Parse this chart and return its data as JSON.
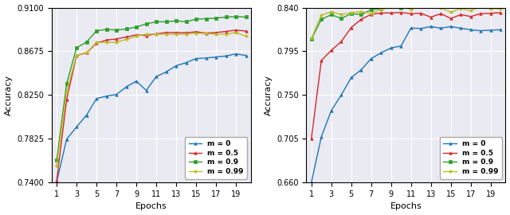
{
  "epochs": [
    1,
    2,
    3,
    4,
    5,
    6,
    7,
    8,
    9,
    10,
    11,
    12,
    13,
    14,
    15,
    16,
    17,
    18,
    19,
    20
  ],
  "left": {
    "m0": [
      0.7405,
      0.782,
      0.794,
      0.8055,
      0.8215,
      0.824,
      0.8255,
      0.833,
      0.8385,
      0.8295,
      0.843,
      0.8475,
      0.8535,
      0.8565,
      0.8605,
      0.861,
      0.862,
      0.863,
      0.865,
      0.8635
    ],
    "m05": [
      0.7415,
      0.8205,
      0.8635,
      0.866,
      0.8755,
      0.8785,
      0.8795,
      0.8815,
      0.8835,
      0.8828,
      0.8845,
      0.8858,
      0.8858,
      0.8855,
      0.8865,
      0.8852,
      0.8858,
      0.8868,
      0.8882,
      0.8872
    ],
    "m09": [
      0.7615,
      0.836,
      0.871,
      0.8765,
      0.8875,
      0.8888,
      0.8882,
      0.8892,
      0.8912,
      0.8942,
      0.8962,
      0.8962,
      0.8972,
      0.8962,
      0.8988,
      0.8992,
      0.8998,
      0.9008,
      0.9012,
      0.9008
    ],
    "m099": [
      0.7565,
      0.8285,
      0.8635,
      0.8662,
      0.8762,
      0.8762,
      0.8762,
      0.8792,
      0.8822,
      0.8842,
      0.8842,
      0.8842,
      0.8842,
      0.8842,
      0.8852,
      0.8848,
      0.8842,
      0.8842,
      0.8858,
      0.8822
    ],
    "ylim": [
      0.74,
      0.91
    ],
    "yticks": [
      0.74,
      0.7825,
      0.825,
      0.8675,
      0.91
    ]
  },
  "right": {
    "m0": [
      0.66,
      0.707,
      0.734,
      0.75,
      0.768,
      0.776,
      0.7875,
      0.7935,
      0.7985,
      0.8005,
      0.819,
      0.8185,
      0.8205,
      0.8188,
      0.8205,
      0.8188,
      0.8172,
      0.8162,
      0.8168,
      0.8172
    ],
    "m05": [
      0.705,
      0.7855,
      0.796,
      0.805,
      0.8195,
      0.828,
      0.833,
      0.8345,
      0.8345,
      0.835,
      0.8338,
      0.8342,
      0.8302,
      0.8338,
      0.8288,
      0.8328,
      0.8308,
      0.8338,
      0.8342,
      0.8348
    ],
    "m09": [
      0.8075,
      0.8278,
      0.8328,
      0.8288,
      0.8338,
      0.8328,
      0.8378,
      0.8392,
      0.8418,
      0.8398,
      0.8418,
      0.8412,
      0.8458,
      0.8442,
      0.8432,
      0.8452,
      0.8458,
      0.8468,
      0.8482,
      0.8478
    ],
    "m099": [
      0.8082,
      0.8322,
      0.8358,
      0.8328,
      0.8348,
      0.8358,
      0.8342,
      0.8382,
      0.8402,
      0.8408,
      0.8382,
      0.8412,
      0.8412,
      0.8398,
      0.8352,
      0.8392,
      0.8368,
      0.8412,
      0.8392,
      0.8388
    ],
    "ylim": [
      0.66,
      0.84
    ],
    "yticks": [
      0.66,
      0.705,
      0.75,
      0.795,
      0.84
    ]
  },
  "colors": {
    "m0": "#1f77b4",
    "m05": "#d62728",
    "m09": "#2ca02c",
    "m099": "#bcbd22"
  },
  "legend_labels": [
    "m = 0",
    "m = 0.5",
    "m = 0.9",
    "m = 0.99"
  ],
  "xlabel": "Epochs",
  "ylabel": "Accuracy",
  "xticks": [
    1,
    3,
    5,
    7,
    9,
    11,
    13,
    15,
    17,
    19
  ],
  "marker_styles": {
    "m0": "^",
    "m05": "^",
    "m09": "s",
    "m099": "P"
  },
  "marker_sizes": {
    "m0": 2.5,
    "m05": 2.5,
    "m09": 2.5,
    "m099": 2.5
  },
  "linewidth": 1.0,
  "bg_color": "#eaeaf2",
  "grid_color": "white",
  "grid_lw": 0.8,
  "tick_fontsize": 7,
  "label_fontsize": 8,
  "legend_fontsize": 6.5
}
